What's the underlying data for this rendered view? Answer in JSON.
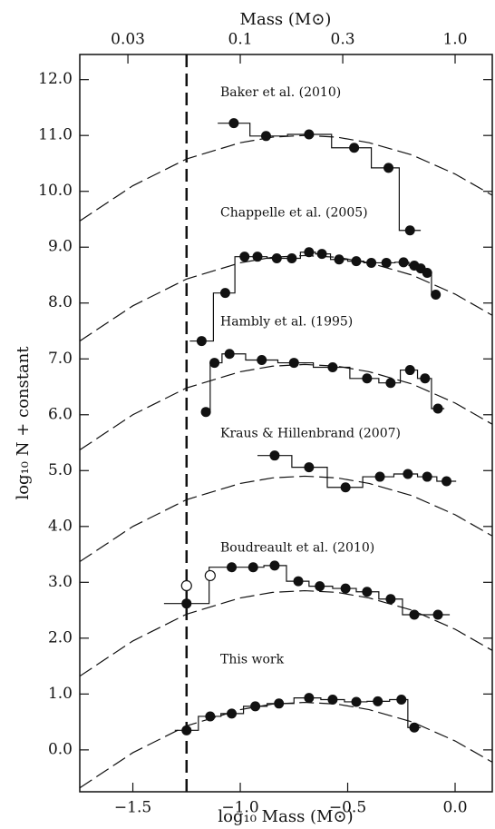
{
  "chart_data": {
    "type": "step",
    "x_label": "log₁₀ Mass (M⊙)",
    "y_label": "log₁₀ N + constant",
    "x2_label": "Mass (M⊙)",
    "xlim": [
      -1.747,
      0.173
    ],
    "ylim": [
      -0.75,
      12.45
    ],
    "xticks": [
      {
        "value": -1.5,
        "label": "−1.5"
      },
      {
        "value": -1.0,
        "label": "−1.0"
      },
      {
        "value": -0.5,
        "label": "−0.5"
      },
      {
        "value": 0,
        "label": "0.0"
      }
    ],
    "x2ticks": [
      {
        "value": -1.523,
        "label": "0.03"
      },
      {
        "value": -1,
        "label": "0.1"
      },
      {
        "value": -0.523,
        "label": "0.3"
      },
      {
        "value": 0,
        "label": "1.0"
      }
    ],
    "yticks": [
      {
        "value": 0,
        "label": "0.0"
      },
      {
        "value": 1,
        "label": "1.0"
      },
      {
        "value": 2,
        "label": "2.0"
      },
      {
        "value": 3,
        "label": "3.0"
      },
      {
        "value": 4,
        "label": "4.0"
      },
      {
        "value": 5,
        "label": "5.0"
      },
      {
        "value": 6,
        "label": "6.0"
      },
      {
        "value": 7,
        "label": "7.0"
      },
      {
        "value": 8,
        "label": "8.0"
      },
      {
        "value": 9,
        "label": "9.0"
      },
      {
        "value": 10,
        "label": "10.0"
      },
      {
        "value": 11,
        "label": "11.0"
      },
      {
        "value": 12,
        "label": "12.0"
      }
    ],
    "vline": -1.25,
    "color": "#111111",
    "curve_x": [
      -1.747,
      -1.5,
      -1.25,
      -1.0,
      -0.85,
      -0.7,
      -0.55,
      -0.4,
      -0.2,
      0,
      0.173
    ],
    "groups": [
      {
        "name": "Baker et al. (2010)",
        "x": [
          -1.03,
          -0.88,
          -0.68,
          -0.47,
          -0.31,
          -0.21
        ],
        "y": [
          11.22,
          10.99,
          11.02,
          10.78,
          10.42,
          9.3
        ],
        "curve_y": [
          9.47,
          10.1,
          10.58,
          10.87,
          10.97,
          11.0,
          10.97,
          10.87,
          10.65,
          10.31,
          9.93
        ]
      },
      {
        "name": "Chappelle et al. (2005)",
        "x": [
          -1.18,
          -1.07,
          -0.98,
          -0.92,
          -0.83,
          -0.76,
          -0.68,
          -0.62,
          -0.54,
          -0.46,
          -0.39,
          -0.32,
          -0.24,
          -0.19,
          -0.16,
          -0.13,
          -0.09
        ],
        "y": [
          7.32,
          8.18,
          8.83,
          8.83,
          8.8,
          8.8,
          8.91,
          8.88,
          8.78,
          8.75,
          8.72,
          8.72,
          8.73,
          8.67,
          8.62,
          8.54,
          8.15
        ],
        "curve_y": [
          7.32,
          7.95,
          8.43,
          8.72,
          8.82,
          8.85,
          8.82,
          8.72,
          8.5,
          8.16,
          7.78
        ]
      },
      {
        "name": "Hambly et al. (1995)",
        "x": [
          -1.16,
          -1.12,
          -1.05,
          -0.9,
          -0.75,
          -0.57,
          -0.41,
          -0.3,
          -0.21,
          -0.14,
          -0.08
        ],
        "y": [
          6.05,
          6.93,
          7.09,
          6.98,
          6.93,
          6.85,
          6.65,
          6.57,
          6.8,
          6.65,
          6.11
        ],
        "curve_y": [
          5.37,
          6.0,
          6.48,
          6.77,
          6.87,
          6.9,
          6.87,
          6.77,
          6.55,
          6.21,
          5.83
        ]
      },
      {
        "name": "Kraus & Hillenbrand (2007)",
        "x": [
          -0.84,
          -0.68,
          -0.51,
          -0.35,
          -0.22,
          -0.13,
          -0.04
        ],
        "y": [
          5.27,
          5.06,
          4.7,
          4.89,
          4.94,
          4.89,
          4.81
        ],
        "curve_y": [
          3.37,
          4.0,
          4.48,
          4.77,
          4.87,
          4.9,
          4.87,
          4.77,
          4.55,
          4.21,
          3.83
        ]
      },
      {
        "name": "Boudreault et al. (2010)",
        "x": [
          -1.25,
          -1.04,
          -0.94,
          -0.84,
          -0.73,
          -0.63,
          -0.51,
          -0.41,
          -0.3,
          -0.19,
          -0.08
        ],
        "y": [
          2.62,
          3.27,
          3.27,
          3.3,
          3.02,
          2.93,
          2.89,
          2.83,
          2.7,
          2.42,
          2.42
        ],
        "open_x": [
          -1.25,
          -1.14
        ],
        "open_y": [
          2.94,
          3.12
        ],
        "curve_y": [
          1.32,
          1.95,
          2.43,
          2.72,
          2.82,
          2.85,
          2.82,
          2.72,
          2.5,
          2.16,
          1.78
        ]
      },
      {
        "name": "This work",
        "x": [
          -1.25,
          -1.14,
          -1.04,
          -0.93,
          -0.82,
          -0.68,
          -0.57,
          -0.46,
          -0.36,
          -0.25,
          -0.19
        ],
        "y": [
          0.35,
          0.6,
          0.65,
          0.78,
          0.83,
          0.93,
          0.9,
          0.86,
          0.87,
          0.9,
          0.4
        ],
        "curve_y": [
          -0.68,
          -0.05,
          0.43,
          0.72,
          0.82,
          0.85,
          0.82,
          0.72,
          0.5,
          0.16,
          -0.22
        ]
      }
    ]
  }
}
